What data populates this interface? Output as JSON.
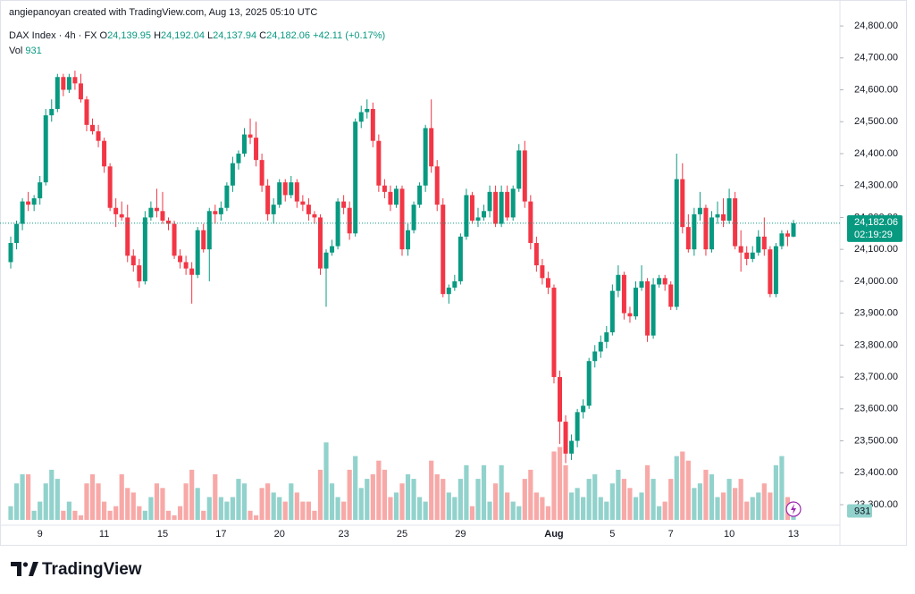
{
  "header": {
    "credit": "angiepanoyan created with TradingView.com, Aug 13, 2025 05:10 UTC"
  },
  "chart_data": {
    "type": "candlestick",
    "legend": {
      "symbol": "DAX Index · 4h · FX",
      "ohlc": [
        {
          "key": "O",
          "value": "24,139.95"
        },
        {
          "key": "H",
          "value": "24,192.04"
        },
        {
          "key": "L",
          "value": "24,137.94"
        },
        {
          "key": "C",
          "value": "24,182.06"
        }
      ],
      "change": "+42.11 (+0.17%)",
      "volume_key": "Vol",
      "volume_value": "931"
    },
    "up_color": "#089981",
    "down_color": "#f23645",
    "volume_up_color": "#92d2cc",
    "volume_down_color": "#f7a9a7",
    "categories": [
      null,
      null,
      null,
      null,
      null,
      "9",
      null,
      null,
      null,
      null,
      null,
      null,
      null,
      null,
      null,
      null,
      "11",
      null,
      null,
      null,
      null,
      null,
      null,
      null,
      null,
      null,
      "15",
      null,
      null,
      null,
      null,
      null,
      null,
      null,
      null,
      null,
      "17",
      null,
      null,
      null,
      null,
      null,
      null,
      null,
      null,
      null,
      "20",
      null,
      null,
      null,
      null,
      null,
      null,
      null,
      null,
      null,
      null,
      "23",
      null,
      null,
      null,
      null,
      null,
      null,
      null,
      null,
      null,
      "25",
      null,
      null,
      null,
      null,
      null,
      null,
      null,
      null,
      null,
      "29",
      null,
      null,
      null,
      null,
      null,
      null,
      null,
      null,
      null,
      null,
      null,
      null,
      null,
      null,
      null,
      "Aug",
      null,
      null,
      null,
      null,
      null,
      null,
      null,
      null,
      null,
      "5",
      null,
      null,
      null,
      null,
      null,
      null,
      null,
      null,
      null,
      "7",
      null,
      null,
      null,
      null,
      null,
      null,
      null,
      null,
      null,
      "10",
      null,
      null,
      null,
      null,
      null,
      null,
      null,
      null,
      null,
      null,
      "13"
    ],
    "open": [
      24060,
      24120,
      24180,
      24250,
      24240,
      24260,
      24310,
      24520,
      24540,
      24640,
      24600,
      24640,
      24620,
      24570,
      24490,
      24470,
      24440,
      24360,
      24230,
      24210,
      24200,
      24080,
      24050,
      24000,
      24200,
      24230,
      24220,
      24190,
      24180,
      24080,
      24060,
      24040,
      24020,
      24160,
      24100,
      24220,
      24210,
      24230,
      24300,
      24370,
      24400,
      24460,
      24450,
      24380,
      24300,
      24210,
      24240,
      24310,
      24270,
      24310,
      24250,
      24240,
      24210,
      24200,
      24040,
      24090,
      24110,
      24250,
      24230,
      24150,
      24500,
      24530,
      24540,
      24440,
      24300,
      24280,
      24240,
      24290,
      24100,
      24160,
      24240,
      24300,
      24480,
      24360,
      24240,
      23960,
      23980,
      24000,
      24140,
      24270,
      24190,
      24200,
      24220,
      24280,
      24180,
      24280,
      24200,
      24290,
      24410,
      24250,
      24120,
      24050,
      24010,
      23980,
      23700,
      23560,
      23460,
      23500,
      23590,
      23610,
      23750,
      23780,
      23810,
      23840,
      23970,
      24020,
      23900,
      23890,
      23980,
      24000,
      23830,
      23990,
      24010,
      23990,
      23920,
      24320,
      24170,
      24100,
      24210,
      24230,
      24100,
      24200,
      24210,
      24190,
      24260,
      24110,
      24090,
      24070,
      24090,
      24140,
      24100,
      23960,
      24110,
      24150,
      24139.95
    ],
    "high": [
      24140,
      24190,
      24260,
      24280,
      24270,
      24330,
      24540,
      24570,
      24650,
      24650,
      24650,
      24660,
      24650,
      24580,
      24510,
      24490,
      24450,
      24370,
      24260,
      24250,
      24240,
      24100,
      24070,
      24220,
      24250,
      24290,
      24280,
      24200,
      24190,
      24100,
      24080,
      24060,
      24170,
      24180,
      24230,
      24240,
      24250,
      24310,
      24390,
      24410,
      24480,
      24510,
      24500,
      24400,
      24320,
      24260,
      24320,
      24320,
      24330,
      24320,
      24270,
      24260,
      24220,
      24210,
      24100,
      24130,
      24260,
      24270,
      24250,
      24510,
      24550,
      24570,
      24560,
      24460,
      24320,
      24300,
      24300,
      24300,
      24180,
      24250,
      24310,
      24490,
      24570,
      24380,
      24260,
      23990,
      24020,
      24150,
      24290,
      24280,
      24230,
      24240,
      24300,
      24300,
      24300,
      24300,
      24300,
      24430,
      24440,
      24270,
      24140,
      24070,
      24030,
      23990,
      23720,
      23580,
      23520,
      23600,
      23630,
      23760,
      23800,
      23830,
      23860,
      23990,
      24050,
      24030,
      23920,
      24000,
      24050,
      24010,
      24010,
      24020,
      24020,
      24000,
      24400,
      24370,
      24210,
      24230,
      24280,
      24240,
      24220,
      24250,
      24260,
      24290,
      24280,
      24160,
      24110,
      24110,
      24160,
      24200,
      24110,
      24120,
      24160,
      24160,
      24192.04
    ],
    "low": [
      24040,
      24100,
      24160,
      24220,
      24220,
      24240,
      24300,
      24500,
      24530,
      24580,
      24590,
      24600,
      24560,
      24470,
      24460,
      24420,
      24340,
      24220,
      24170,
      24190,
      24060,
      24030,
      23980,
      23990,
      24190,
      24200,
      24180,
      24160,
      24070,
      24040,
      24020,
      23930,
      24010,
      24090,
      24000,
      24180,
      24190,
      24220,
      24280,
      24350,
      24390,
      24430,
      24360,
      24280,
      24190,
      24180,
      24230,
      24250,
      24260,
      24230,
      24220,
      24190,
      24180,
      24020,
      23920,
      24080,
      24100,
      24210,
      24130,
      24140,
      24480,
      24510,
      24420,
      24280,
      24260,
      24220,
      24230,
      24080,
      24080,
      24150,
      24230,
      24280,
      24340,
      24220,
      23950,
      23930,
      23970,
      23990,
      24130,
      24180,
      24170,
      24190,
      24200,
      24170,
      24170,
      24190,
      24190,
      24280,
      24230,
      24100,
      24030,
      23990,
      23960,
      23680,
      23490,
      23430,
      23440,
      23480,
      23570,
      23600,
      23730,
      23760,
      23790,
      23830,
      23950,
      23880,
      23870,
      23880,
      23970,
      23810,
      23820,
      23980,
      23970,
      23910,
      23910,
      24150,
      24090,
      24080,
      24190,
      24080,
      24090,
      24180,
      24170,
      24180,
      24100,
      24030,
      24050,
      24060,
      24080,
      24080,
      23950,
      23950,
      24100,
      24110,
      24137.94
    ],
    "close": [
      24120,
      24180,
      24250,
      24240,
      24260,
      24310,
      24520,
      24540,
      24640,
      24600,
      24640,
      24620,
      24570,
      24490,
      24470,
      24440,
      24360,
      24230,
      24210,
      24200,
      24080,
      24050,
      24000,
      24200,
      24230,
      24220,
      24190,
      24180,
      24080,
      24060,
      24040,
      24020,
      24160,
      24100,
      24220,
      24210,
      24230,
      24300,
      24370,
      24400,
      24460,
      24450,
      24380,
      24300,
      24210,
      24240,
      24310,
      24270,
      24310,
      24250,
      24240,
      24210,
      24200,
      24040,
      24090,
      24110,
      24250,
      24230,
      24150,
      24500,
      24530,
      24540,
      24440,
      24300,
      24280,
      24240,
      24290,
      24100,
      24160,
      24240,
      24300,
      24480,
      24360,
      24240,
      23960,
      23980,
      24000,
      24140,
      24270,
      24190,
      24200,
      24220,
      24280,
      24180,
      24280,
      24200,
      24290,
      24410,
      24250,
      24120,
      24050,
      24010,
      23980,
      23700,
      23560,
      23460,
      23500,
      23590,
      23610,
      23750,
      23780,
      23810,
      23840,
      23970,
      24020,
      23900,
      23890,
      23980,
      24000,
      23830,
      23990,
      24010,
      23990,
      23920,
      24320,
      24170,
      24100,
      24210,
      24230,
      24100,
      24200,
      24210,
      24190,
      24260,
      24110,
      24090,
      24070,
      24090,
      24140,
      24100,
      23960,
      24110,
      24150,
      24140,
      24182.06
    ],
    "volume": [
      1500,
      4000,
      5000,
      5000,
      1000,
      2000,
      4000,
      5500,
      4500,
      1000,
      2000,
      1000,
      500,
      4000,
      5000,
      4000,
      2000,
      1000,
      1500,
      5000,
      3500,
      3000,
      1500,
      1000,
      2500,
      4000,
      3500,
      1000,
      500,
      1500,
      4000,
      5500,
      3500,
      1000,
      2500,
      5000,
      2500,
      2000,
      2500,
      4500,
      4000,
      1000,
      500,
      3500,
      4000,
      3000,
      2500,
      2000,
      4000,
      3000,
      2000,
      2000,
      1000,
      5500,
      8500,
      4000,
      2500,
      2000,
      5500,
      7000,
      3500,
      4500,
      5000,
      6500,
      5500,
      2500,
      3000,
      4000,
      5000,
      4500,
      2500,
      2000,
      6500,
      5000,
      4500,
      3000,
      2500,
      4500,
      6000,
      1500,
      4500,
      6000,
      2000,
      4000,
      6000,
      3000,
      2000,
      1500,
      4500,
      5500,
      3000,
      2500,
      1500,
      7500,
      8000,
      6000,
      3000,
      3500,
      2500,
      4500,
      5000,
      2500,
      2000,
      4000,
      5500,
      4500,
      3500,
      2500,
      3000,
      6000,
      4500,
      1500,
      2000,
      4500,
      7000,
      7500,
      6500,
      3500,
      4000,
      5500,
      5000,
      2500,
      3000,
      4500,
      3500,
      4500,
      2000,
      2500,
      3000,
      4000,
      3000,
      6000,
      7000,
      2500,
      931
    ],
    "volume_lim": [
      0,
      10000
    ],
    "ylim": [
      23230,
      24831
    ],
    "yticks": [
      {
        "value": 23300,
        "label": "23,300.00"
      },
      {
        "value": 23400,
        "label": "23,400.00"
      },
      {
        "value": 23500,
        "label": "23,500.00"
      },
      {
        "value": 23600,
        "label": "23,600.00"
      },
      {
        "value": 23700,
        "label": "23,700.00"
      },
      {
        "value": 23800,
        "label": "23,800.00"
      },
      {
        "value": 23900,
        "label": "23,900.00"
      },
      {
        "value": 24000,
        "label": "24,000.00"
      },
      {
        "value": 24100,
        "label": "24,100.00"
      },
      {
        "value": 24200,
        "label": "24,200.00"
      },
      {
        "value": 24300,
        "label": "24,300.00"
      },
      {
        "value": 24400,
        "label": "24,400.00"
      },
      {
        "value": 24500,
        "label": "24,500.00"
      },
      {
        "value": 24600,
        "label": "24,600.00"
      },
      {
        "value": 24700,
        "label": "24,700.00"
      },
      {
        "value": 24800,
        "label": "24,800.00"
      }
    ],
    "last_price": {
      "value": 24182.06,
      "label": "24,182.06"
    },
    "countdown": "02:19:29"
  },
  "footer": {
    "brand": "TradingView"
  }
}
